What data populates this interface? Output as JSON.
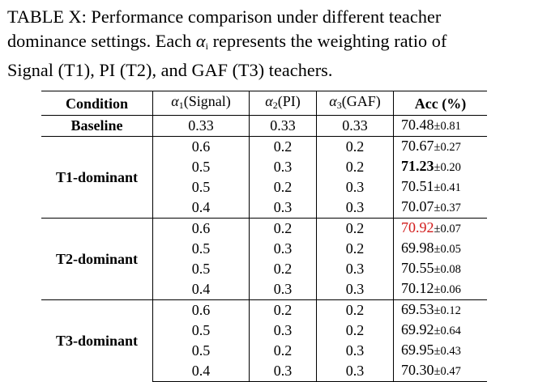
{
  "caption": {
    "line1": "TABLE X: Performance comparison under different teacher",
    "line2a": "dominance settings. Each ",
    "line2_alpha": "α",
    "line2_sub": "i",
    "line2b": " represents the weighting ratio of",
    "line3": "Signal (T1), PI (T2), and GAF (T3) teachers."
  },
  "header": {
    "condition": "Condition",
    "alpha_symbol": "α",
    "a1_sub": "1",
    "a1_label": "(Signal)",
    "a2_sub": "2",
    "a2_label": "(PI)",
    "a3_sub": "3",
    "a3_label": "(GAF)",
    "acc": "Acc (%)"
  },
  "baseline": {
    "condition": "Baseline",
    "a1": "0.33",
    "a2": "0.33",
    "a3": "0.33",
    "acc_mean": "70.48",
    "acc_pm": "±0.81"
  },
  "groups": [
    {
      "condition": "T1-dominant",
      "rows": [
        {
          "a1": "0.6",
          "a2": "0.2",
          "a3": "0.2",
          "acc_mean": "70.67",
          "acc_pm": "±0.27"
        },
        {
          "a1": "0.5",
          "a2": "0.3",
          "a3": "0.2",
          "acc_mean": "71.23",
          "acc_pm": "±0.20"
        },
        {
          "a1": "0.5",
          "a2": "0.2",
          "a3": "0.3",
          "acc_mean": "70.51",
          "acc_pm": "±0.41"
        },
        {
          "a1": "0.4",
          "a2": "0.3",
          "a3": "0.3",
          "acc_mean": "70.07",
          "acc_pm": "±0.37"
        }
      ]
    },
    {
      "condition": "T2-dominant",
      "rows": [
        {
          "a1": "0.6",
          "a2": "0.2",
          "a3": "0.2",
          "acc_mean": "70.92",
          "acc_pm": "±0.07"
        },
        {
          "a1": "0.5",
          "a2": "0.3",
          "a3": "0.2",
          "acc_mean": "69.98",
          "acc_pm": "±0.05"
        },
        {
          "a1": "0.5",
          "a2": "0.2",
          "a3": "0.3",
          "acc_mean": "70.55",
          "acc_pm": "±0.08"
        },
        {
          "a1": "0.4",
          "a2": "0.3",
          "a3": "0.3",
          "acc_mean": "70.12",
          "acc_pm": "±0.06"
        }
      ]
    },
    {
      "condition": "T3-dominant",
      "rows": [
        {
          "a1": "0.6",
          "a2": "0.2",
          "a3": "0.2",
          "acc_mean": "69.53",
          "acc_pm": "±0.12"
        },
        {
          "a1": "0.5",
          "a2": "0.3",
          "a3": "0.2",
          "acc_mean": "69.92",
          "acc_pm": "±0.64"
        },
        {
          "a1": "0.5",
          "a2": "0.2",
          "a3": "0.3",
          "acc_mean": "69.95",
          "acc_pm": "±0.43"
        },
        {
          "a1": "0.4",
          "a2": "0.3",
          "a3": "0.3",
          "acc_mean": "70.30",
          "acc_pm": "±0.47"
        }
      ]
    }
  ],
  "highlights": {
    "best_color": "#d21b1b"
  }
}
